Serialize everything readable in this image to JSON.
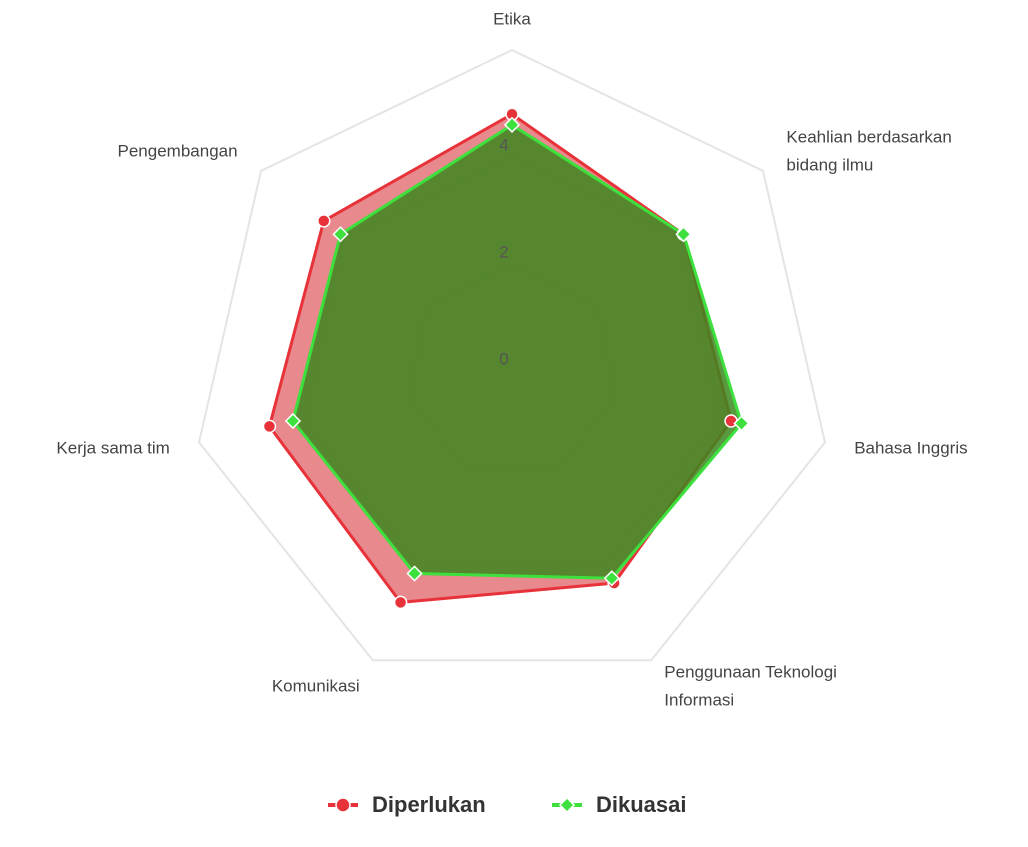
{
  "chart_data": {
    "type": "radar",
    "categories": [
      [
        "Etika"
      ],
      [
        "Keahlian berdasarkan",
        "bidang ilmu"
      ],
      [
        "Bahasa Inggris"
      ],
      [
        "Penggunaan Teknologi",
        "Informasi"
      ],
      [
        "Komunikasi"
      ],
      [
        "Kerja sama tim"
      ],
      [
        "Pengembangan"
      ]
    ],
    "series": [
      {
        "name": "Diperlukan",
        "color": "#e8323a",
        "values": [
          4.8,
          4.1,
          4.2,
          4.4,
          4.8,
          4.65,
          4.5
        ]
      },
      {
        "name": "Dikuasai",
        "color": "#3ee03e",
        "values": [
          4.6,
          4.1,
          4.4,
          4.3,
          4.2,
          4.2,
          4.1
        ]
      }
    ],
    "ylim": [
      0,
      6
    ],
    "yticks": [
      0,
      2,
      4
    ],
    "grid": true,
    "legend": "bottom"
  }
}
